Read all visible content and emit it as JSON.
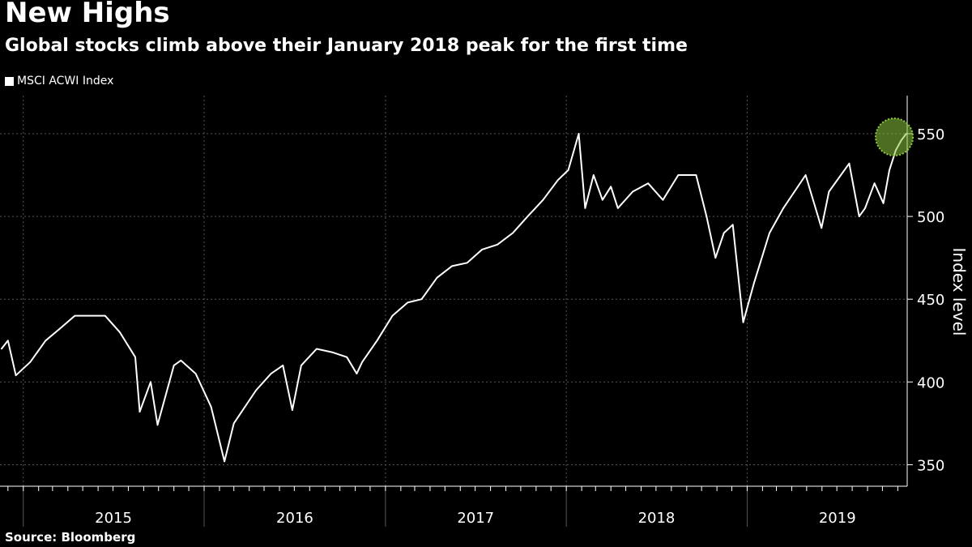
{
  "chart_data": {
    "type": "line",
    "title": "New Highs",
    "subtitle": "Global stocks climb above their January 2018 peak for the first time",
    "source": "Source: Bloomberg",
    "ylabel": "Index level",
    "ylim": [
      337,
      573
    ],
    "xlim": [
      "2014-11-15",
      "2019-11-20"
    ],
    "y_ticks": [
      350,
      400,
      450,
      500,
      550
    ],
    "x_year_labels": [
      {
        "label": "2015",
        "mid": "2015-07-02"
      },
      {
        "label": "2016",
        "mid": "2016-07-02"
      },
      {
        "label": "2017",
        "mid": "2017-07-02"
      },
      {
        "label": "2018",
        "mid": "2018-07-02"
      },
      {
        "label": "2019",
        "mid": "2019-07-02"
      }
    ],
    "grid": true,
    "legend_position": "top-left",
    "highlight": {
      "x": "2019-10-25",
      "y": 548
    },
    "colors": {
      "background": "#000000",
      "line": "#ffffff",
      "grid": "#555555",
      "highlight": "#8cc63f"
    },
    "series": [
      {
        "name": "MSCI ACWI Index",
        "x": [
          "2014-11-18",
          "2014-12-01",
          "2014-12-17",
          "2015-01-15",
          "2015-02-15",
          "2015-03-15",
          "2015-04-15",
          "2015-05-15",
          "2015-06-15",
          "2015-07-15",
          "2015-08-15",
          "2015-08-24",
          "2015-09-15",
          "2015-09-29",
          "2015-11-01",
          "2015-11-15",
          "2015-12-15",
          "2016-01-15",
          "2016-02-11",
          "2016-03-01",
          "2016-04-15",
          "2016-05-15",
          "2016-06-08",
          "2016-06-27",
          "2016-07-15",
          "2016-08-15",
          "2016-09-15",
          "2016-10-15",
          "2016-11-04",
          "2016-11-15",
          "2016-12-15",
          "2017-01-15",
          "2017-02-15",
          "2017-03-15",
          "2017-04-15",
          "2017-05-15",
          "2017-06-15",
          "2017-07-15",
          "2017-08-15",
          "2017-09-15",
          "2017-10-15",
          "2017-11-15",
          "2017-12-15",
          "2018-01-05",
          "2018-01-26",
          "2018-02-08",
          "2018-02-25",
          "2018-03-15",
          "2018-04-01",
          "2018-04-15",
          "2018-05-15",
          "2018-06-15",
          "2018-07-15",
          "2018-08-15",
          "2018-09-20",
          "2018-10-11",
          "2018-10-29",
          "2018-11-15",
          "2018-12-03",
          "2018-12-24",
          "2019-01-15",
          "2019-02-15",
          "2019-03-15",
          "2019-04-29",
          "2019-05-31",
          "2019-06-15",
          "2019-07-26",
          "2019-08-15",
          "2019-08-27",
          "2019-09-15",
          "2019-10-03",
          "2019-10-15",
          "2019-10-28",
          "2019-11-08",
          "2019-11-18"
        ],
        "values": [
          420,
          425,
          404,
          412,
          425,
          432,
          440,
          440,
          440,
          430,
          415,
          382,
          400,
          374,
          410,
          413,
          405,
          385,
          352,
          375,
          395,
          405,
          410,
          383,
          410,
          420,
          418,
          415,
          405,
          412,
          425,
          440,
          448,
          450,
          463,
          470,
          472,
          480,
          483,
          490,
          500,
          510,
          522,
          528,
          550,
          505,
          525,
          510,
          518,
          505,
          515,
          520,
          510,
          525,
          525,
          500,
          475,
          490,
          495,
          436,
          460,
          490,
          505,
          525,
          493,
          515,
          532,
          500,
          505,
          520,
          508,
          528,
          540,
          546,
          550
        ]
      }
    ]
  }
}
